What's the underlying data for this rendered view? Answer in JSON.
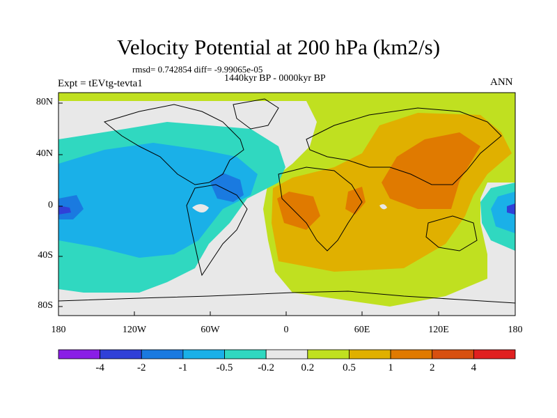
{
  "title": "Velocity Potential at 200 hPa (km2/s)",
  "stats": "rmsd= 0.742854 diff= -9.99065e-05",
  "period": "1440kyr BP - 0000kyr BP",
  "expt": "Expt = tEVtg-tevta1",
  "season": "ANN",
  "y_ticks": [
    "80N",
    "40N",
    "0",
    "40S",
    "80S"
  ],
  "x_ticks": [
    "180",
    "120W",
    "60W",
    "0",
    "60E",
    "120E",
    "180"
  ],
  "colorbar": {
    "labels": [
      "-4",
      "-2",
      "-1",
      "-0.5",
      "-0.2",
      "0.2",
      "0.5",
      "1",
      "2",
      "4"
    ],
    "colors": [
      "#8a1ee6",
      "#3040d8",
      "#1a7ae0",
      "#1ab0e8",
      "#30d8c0",
      "#e8e8e8",
      "#c0e020",
      "#e0b000",
      "#e07a00",
      "#d85010",
      "#e02020"
    ]
  },
  "colors": {
    "neutral": "#e8e8e8",
    "pos_light": "#c0e020",
    "pos_mid": "#e0b000",
    "pos_high": "#e07a00",
    "neg_light": "#30d8c0",
    "neg_mid": "#1ab0e8",
    "neg_high": "#1a7ae0",
    "neg_max": "#3040d8"
  }
}
